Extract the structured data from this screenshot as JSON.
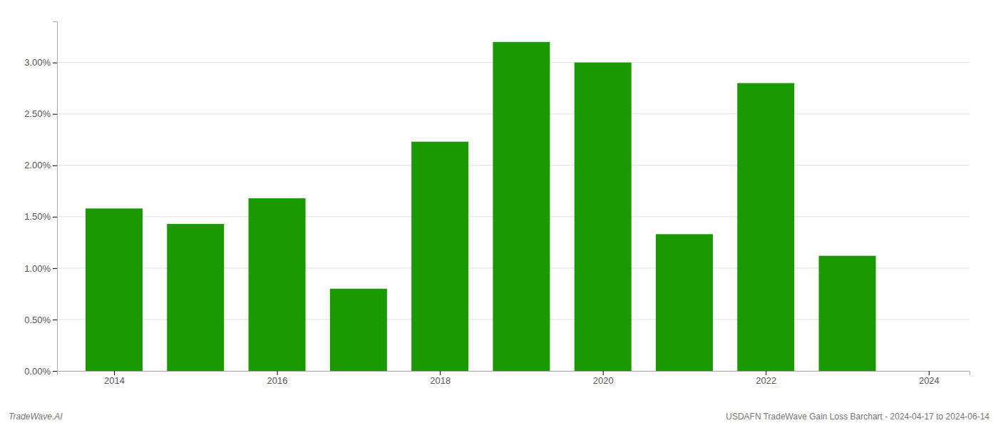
{
  "chart_data": {
    "type": "bar",
    "x": [
      2014,
      2015,
      2016,
      2017,
      2018,
      2019,
      2020,
      2021,
      2022,
      2023
    ],
    "values": [
      0.0158,
      0.0143,
      0.0168,
      0.008,
      0.0223,
      0.032,
      0.03,
      0.0133,
      0.028,
      0.0112
    ],
    "color": "#1a9a00",
    "xlim": [
      2013.3,
      2024.5
    ],
    "xticks": [
      2014,
      2016,
      2018,
      2020,
      2022,
      2024
    ],
    "ylim": [
      0,
      0.034
    ],
    "yticks": [
      {
        "value": 0,
        "label": "0.00%"
      },
      {
        "value": 0.005,
        "label": "0.50%"
      },
      {
        "value": 0.01,
        "label": "1.00%"
      },
      {
        "value": 0.015,
        "label": "1.50%"
      },
      {
        "value": 0.02,
        "label": "2.00%"
      },
      {
        "value": 0.025,
        "label": "2.50%"
      },
      {
        "value": 0.03,
        "label": "3.00%"
      }
    ],
    "grid": true,
    "annotations": [
      "TradeWave.AI",
      "USDAFN TradeWave Gain Loss Barchart - 2024-04-17 to 2024-06-14"
    ]
  }
}
